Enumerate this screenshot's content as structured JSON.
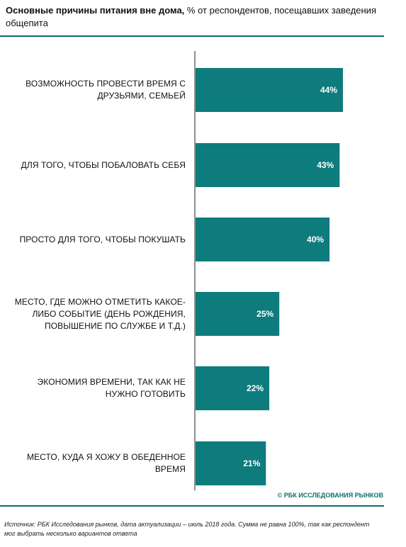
{
  "title": {
    "bold": "Основные причины питания вне дома,",
    "rest": " % от респондентов, посещавших заведения общепита"
  },
  "brand": "© РБК ИССЛЕДОВАНИЯ РЫНКОВ",
  "source": "Источник: РБК Исследования рынков, дата актуализации – июль 2018 года. Сумма не равна 100%, так как респондент мог выбрать несколько вариантов ответа",
  "colors": {
    "bar": "#0e7b7d",
    "accent": "#0e6f6b",
    "bar_label": "#ffffff"
  },
  "chart_data": {
    "type": "bar",
    "orientation": "horizontal",
    "categories": [
      "Возможность провести время с друзьями, семьей",
      "Для того, чтобы побаловать себя",
      "Просто для того, чтобы покушать",
      "Место, где можно отметить какое-либо событие (день рождения, повышение по службе и т.д.)",
      "Экономия времени, так как не нужно готовить",
      "Место, куда я хожу в обеденное время"
    ],
    "values": [
      44,
      43,
      40,
      25,
      22,
      21
    ],
    "value_labels": [
      "44%",
      "43%",
      "40%",
      "25%",
      "22%",
      "21%"
    ],
    "unit": "%",
    "xlim": [
      0,
      44
    ],
    "grid": false,
    "legend": "none"
  }
}
